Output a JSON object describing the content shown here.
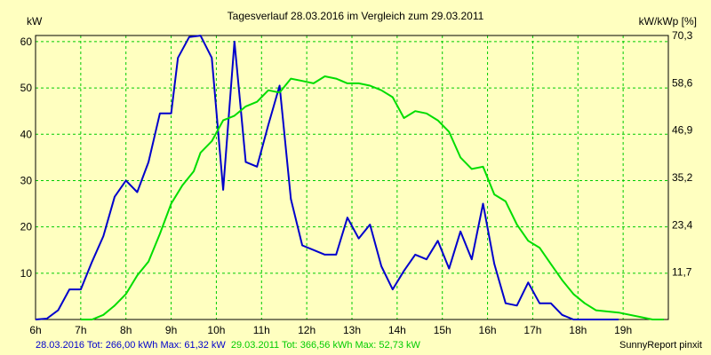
{
  "chart_data": {
    "type": "line",
    "title": "Tagesverlauf 28.03.2016 im Vergleich zum 29.03.2011",
    "left_unit": "kW",
    "right_unit": "kW/kWp [%]",
    "xlim": [
      6,
      20
    ],
    "ylim": [
      0,
      61.32
    ],
    "x_ticks": [
      {
        "x": 6,
        "label": "6h"
      },
      {
        "x": 7,
        "label": "7h"
      },
      {
        "x": 8,
        "label": "8h"
      },
      {
        "x": 9,
        "label": "9h"
      },
      {
        "x": 10,
        "label": "10h"
      },
      {
        "x": 11,
        "label": "11h"
      },
      {
        "x": 12,
        "label": "12h"
      },
      {
        "x": 13,
        "label": "13h"
      },
      {
        "x": 14,
        "label": "14h"
      },
      {
        "x": 15,
        "label": "15h"
      },
      {
        "x": 16,
        "label": "16h"
      },
      {
        "x": 17,
        "label": "17h"
      },
      {
        "x": 18,
        "label": "18h"
      },
      {
        "x": 19,
        "label": "19h"
      }
    ],
    "y_ticks_left": [
      {
        "y": 10,
        "label": "10"
      },
      {
        "y": 20,
        "label": "20"
      },
      {
        "y": 30,
        "label": "30"
      },
      {
        "y": 40,
        "label": "40"
      },
      {
        "y": 50,
        "label": "50"
      },
      {
        "y": 60,
        "label": "60"
      }
    ],
    "y_ticks_right": [
      {
        "y": 10.22,
        "label": "11,7"
      },
      {
        "y": 20.44,
        "label": "23,4"
      },
      {
        "y": 30.66,
        "label": "35,2"
      },
      {
        "y": 40.88,
        "label": "46,9"
      },
      {
        "y": 51.1,
        "label": "58,6"
      },
      {
        "y": 61.32,
        "label": "70,3"
      }
    ],
    "grid": true,
    "series": [
      {
        "color": "#0000cc",
        "x": [
          6.0,
          6.25,
          6.5,
          6.75,
          7.0,
          7.25,
          7.5,
          7.75,
          8.0,
          8.25,
          8.5,
          8.75,
          9.0,
          9.15,
          9.4,
          9.65,
          9.9,
          10.15,
          10.4,
          10.65,
          10.9,
          11.15,
          11.4,
          11.65,
          11.9,
          12.15,
          12.4,
          12.65,
          12.9,
          13.15,
          13.4,
          13.65,
          13.9,
          14.15,
          14.4,
          14.65,
          14.9,
          15.15,
          15.4,
          15.65,
          15.9,
          16.15,
          16.4,
          16.65,
          16.9,
          17.15,
          17.4,
          17.65,
          17.9,
          18.15,
          18.4,
          18.9
        ],
        "values": [
          0,
          0.2,
          2,
          6.5,
          6.5,
          12.5,
          18,
          26.5,
          30,
          27.5,
          34,
          44.5,
          44.5,
          56.5,
          61,
          61.3,
          56.5,
          28,
          60,
          34,
          33,
          42,
          50.5,
          26,
          16,
          15,
          14,
          14,
          22,
          17.5,
          20.5,
          11.5,
          6.5,
          10.5,
          14,
          13,
          17,
          11,
          19,
          13,
          25,
          12,
          3.5,
          3,
          8,
          3.5,
          3.5,
          1,
          0,
          0,
          0,
          0
        ]
      },
      {
        "color": "#00dd00",
        "x": [
          7.0,
          7.25,
          7.5,
          7.75,
          8.0,
          8.25,
          8.5,
          8.75,
          9.0,
          9.25,
          9.5,
          9.65,
          9.9,
          10.15,
          10.4,
          10.65,
          10.9,
          11.15,
          11.4,
          11.65,
          11.9,
          12.15,
          12.4,
          12.65,
          12.9,
          13.15,
          13.4,
          13.65,
          13.9,
          14.15,
          14.4,
          14.65,
          14.9,
          15.15,
          15.4,
          15.65,
          15.9,
          16.15,
          16.4,
          16.65,
          16.9,
          17.15,
          17.4,
          17.65,
          17.9,
          18.15,
          18.4,
          18.9,
          19.4,
          19.65,
          19.9
        ],
        "values": [
          0,
          0,
          1,
          3,
          5.5,
          9.5,
          12.5,
          18.5,
          25,
          29,
          32,
          36,
          38.5,
          43,
          44,
          46,
          47,
          49.5,
          49,
          52,
          51.5,
          51,
          52.5,
          52,
          51,
          51,
          50.5,
          49.5,
          48,
          43.5,
          45,
          44.5,
          43,
          40.5,
          35,
          32.5,
          33,
          27,
          25.5,
          20.5,
          17,
          15.5,
          12,
          8.5,
          5.5,
          3.5,
          2,
          1.5,
          0.5,
          0,
          0
        ]
      }
    ]
  },
  "footer": {
    "left_label": "28.03.2016 Tot: 266,00 kWh Max: 61,32 kW",
    "right_label": "29.03.2011 Tot: 366,56 kWh Max: 52,73 kW",
    "brand": "SunnyReport pinxit"
  },
  "colors": {
    "background": "#ffffc0",
    "grid": "#00cc00",
    "axis": "#000000",
    "blue_series": "#0000cc",
    "green_series": "#00dd00"
  }
}
